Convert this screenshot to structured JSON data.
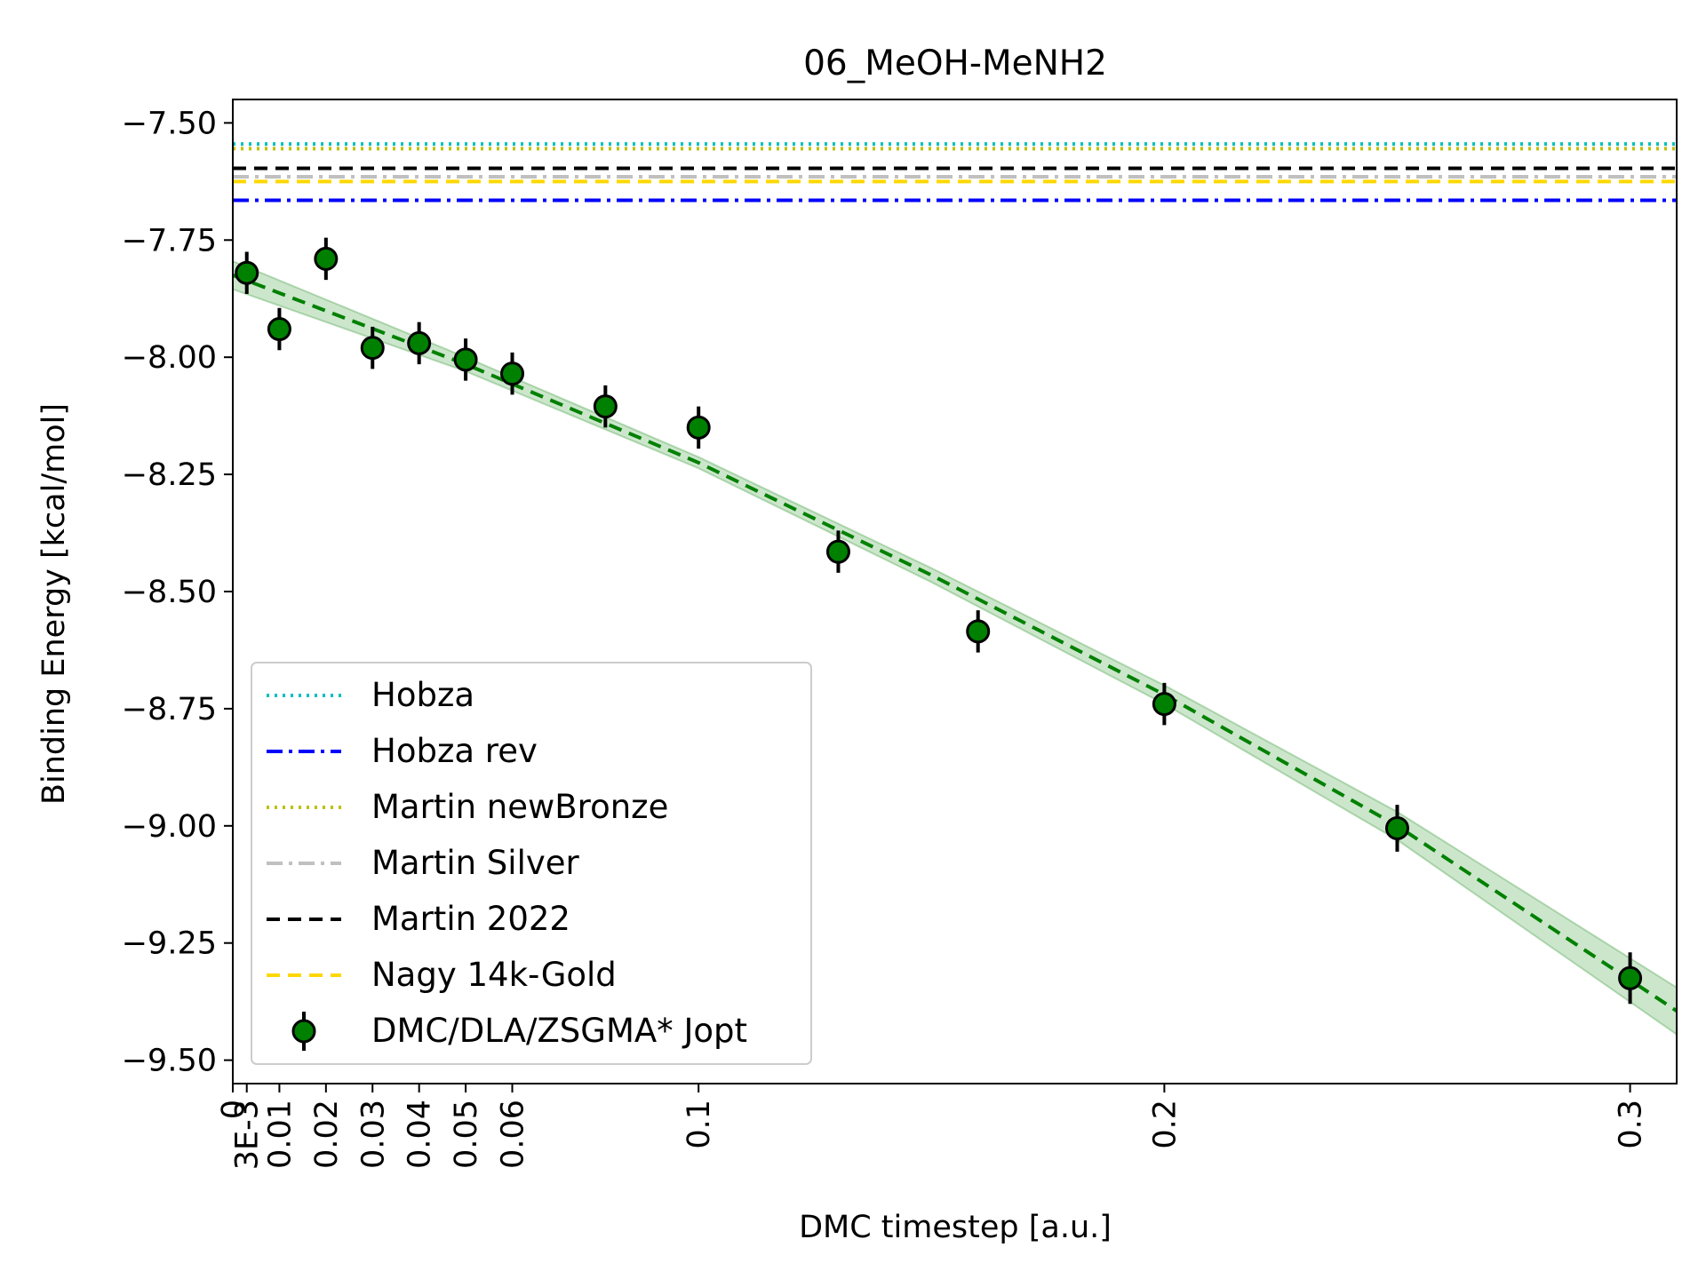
{
  "chart_data": {
    "type": "scatter",
    "title": "06_MeOH-MeNH2",
    "xlabel": "DMC timestep [a.u.]",
    "ylabel": "Binding Energy [kcal/mol]",
    "xlim": [
      0,
      0.31
    ],
    "ylim": [
      -9.55,
      -7.45
    ],
    "x_ticks": [
      0,
      0.003,
      0.01,
      0.02,
      0.03,
      0.04,
      0.05,
      0.06,
      0.1,
      0.2,
      0.3
    ],
    "x_tick_labels": [
      "0",
      "3E-3",
      "0.01",
      "0.02",
      "0.03",
      "0.04",
      "0.05",
      "0.06",
      "0.1",
      "0.2",
      "0.3"
    ],
    "y_ticks": [
      -7.5,
      -7.75,
      -8.0,
      -8.25,
      -8.5,
      -8.75,
      -9.0,
      -9.25,
      -9.5
    ],
    "y_tick_labels": [
      "−7.50",
      "−7.75",
      "−8.00",
      "−8.25",
      "−8.50",
      "−8.75",
      "−9.00",
      "−9.25",
      "−9.50"
    ],
    "grid": false,
    "legend_position": "lower-left",
    "reference_lines": [
      {
        "name": "Hobza",
        "y": -7.545,
        "color": "#00BFBF",
        "style": "dotted"
      },
      {
        "name": "Hobza rev",
        "y": -7.665,
        "color": "#0000FF",
        "style": "dashdot"
      },
      {
        "name": "Martin newBronze",
        "y": -7.555,
        "color": "#BFBF00",
        "style": "dotted"
      },
      {
        "name": "Martin Silver",
        "y": -7.615,
        "color": "#C0C0C0",
        "style": "dashdot"
      },
      {
        "name": "Martin 2022",
        "y": -7.597,
        "color": "#000000",
        "style": "dashed"
      },
      {
        "name": "Nagy 14k-Gold",
        "y": -7.625,
        "color": "#FFD700",
        "style": "dashed"
      }
    ],
    "series": [
      {
        "name": "DMC/DLA/ZSGMA* Jopt",
        "color": "#008000",
        "x": [
          0.003,
          0.01,
          0.02,
          0.03,
          0.04,
          0.05,
          0.06,
          0.08,
          0.1,
          0.13,
          0.16,
          0.2,
          0.25,
          0.3
        ],
        "y": [
          -7.82,
          -7.94,
          -7.79,
          -7.98,
          -7.97,
          -8.005,
          -8.035,
          -8.105,
          -8.15,
          -8.415,
          -8.585,
          -8.74,
          -9.005,
          -9.325
        ],
        "yerr": [
          0.045,
          0.045,
          0.045,
          0.045,
          0.045,
          0.045,
          0.045,
          0.045,
          0.045,
          0.045,
          0.045,
          0.045,
          0.05,
          0.055
        ]
      }
    ],
    "fit": {
      "color": "#008000",
      "style": "dashed",
      "x": [
        0,
        0.05,
        0.1,
        0.15,
        0.2,
        0.25,
        0.31
      ],
      "y": [
        -7.825,
        -8.015,
        -8.225,
        -8.465,
        -8.72,
        -9.0,
        -9.395
      ],
      "band_halfwidth": [
        0.03,
        0.015,
        0.012,
        0.015,
        0.02,
        0.03,
        0.05
      ]
    }
  }
}
